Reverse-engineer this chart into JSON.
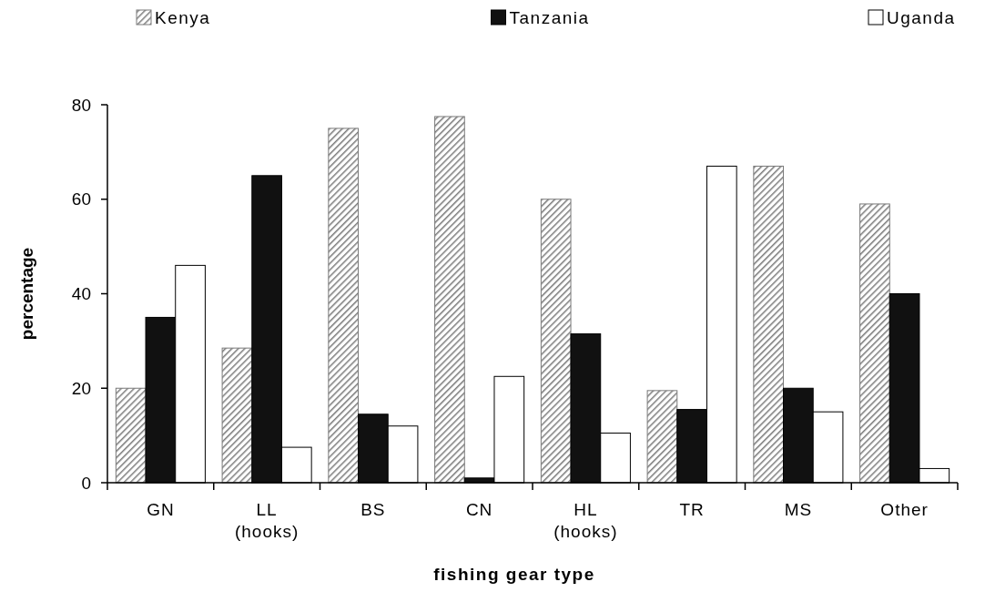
{
  "chart_data": {
    "type": "bar",
    "xlabel": "fishing gear type",
    "ylabel": "percentage",
    "categories": [
      "GN",
      "LL (hooks)",
      "BS",
      "CN",
      "HL (hooks)",
      "TR",
      "MS",
      "Other"
    ],
    "series": [
      {
        "name": "Kenya",
        "color": "#7a7a7a",
        "values": [
          20,
          28.5,
          75,
          77.5,
          60,
          19.5,
          67,
          59
        ]
      },
      {
        "name": "Tanzania",
        "color": "#111111",
        "values": [
          35,
          65,
          14.5,
          1,
          31.5,
          15.5,
          20,
          40
        ]
      },
      {
        "name": "Uganda",
        "color": "#ffffff",
        "values": [
          46,
          7.5,
          12,
          22.5,
          10.5,
          67,
          15,
          3
        ]
      }
    ],
    "ylim": [
      0,
      80
    ],
    "yticks": [
      0,
      20,
      40,
      60,
      80
    ],
    "grid": false,
    "legend": "top"
  }
}
